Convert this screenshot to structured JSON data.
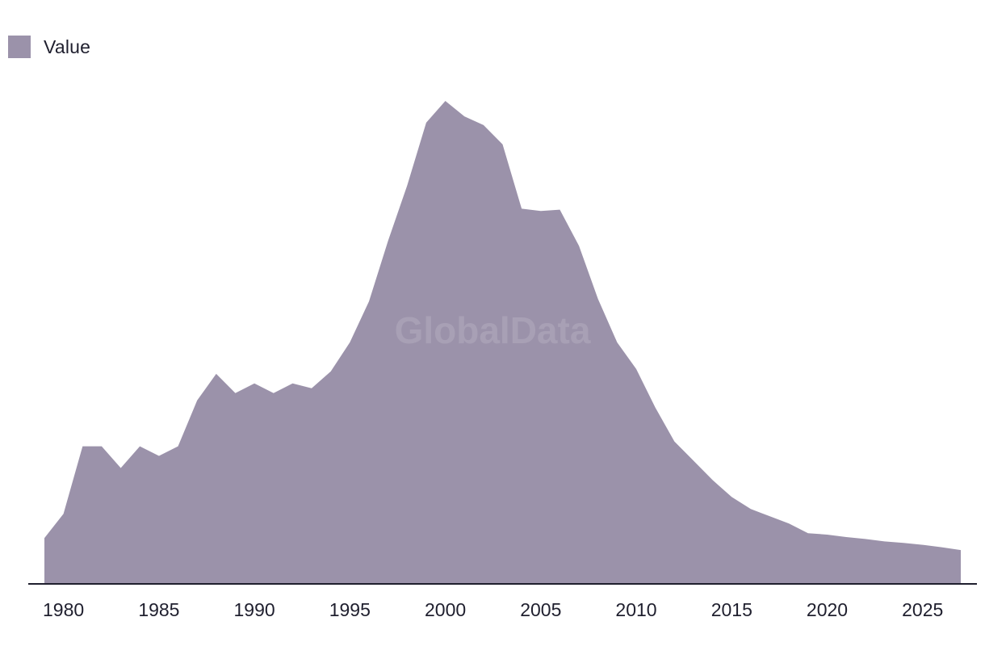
{
  "legend": {
    "label": "Value"
  },
  "watermark": "GlobalData",
  "colors": {
    "area": "#9b92aa",
    "axis": "#1f1f2e",
    "text": "#1f1f2e"
  },
  "chart_data": {
    "type": "area",
    "title": "",
    "xlabel": "",
    "ylabel": "",
    "grid": false,
    "legend_position": "top-left",
    "xlim": [
      1979,
      2027
    ],
    "ylim": [
      0,
      100
    ],
    "xticks": [
      1980,
      1985,
      1990,
      1995,
      2000,
      2005,
      2010,
      2015,
      2020,
      2025
    ],
    "series": [
      {
        "name": "Value",
        "x": [
          1979,
          1980,
          1981,
          1982,
          1983,
          1984,
          1985,
          1986,
          1987,
          1988,
          1989,
          1990,
          1991,
          1992,
          1993,
          1994,
          1995,
          1996,
          1997,
          1998,
          1999,
          2000,
          2001,
          2002,
          2003,
          2004,
          2005,
          2006,
          2007,
          2008,
          2009,
          2010,
          2011,
          2012,
          2013,
          2014,
          2015,
          2016,
          2017,
          2018,
          2019,
          2020,
          2021,
          2022,
          2023,
          2024,
          2025,
          2026,
          2027
        ],
        "values": [
          9.5,
          14.5,
          28.5,
          28.5,
          24,
          28.5,
          26.5,
          28.5,
          38,
          43.5,
          39.5,
          41.5,
          39.5,
          41.5,
          40.5,
          44,
          50,
          58.5,
          71,
          82.5,
          95.5,
          100,
          96.8,
          95,
          91,
          77.7,
          77.2,
          77.5,
          70,
          59,
          50,
          44.5,
          36.5,
          29.5,
          25.5,
          21.5,
          18,
          15.5,
          14,
          12.5,
          10.5,
          10.2,
          9.7,
          9.3,
          8.8,
          8.5,
          8.1,
          7.6,
          7
        ]
      }
    ]
  }
}
